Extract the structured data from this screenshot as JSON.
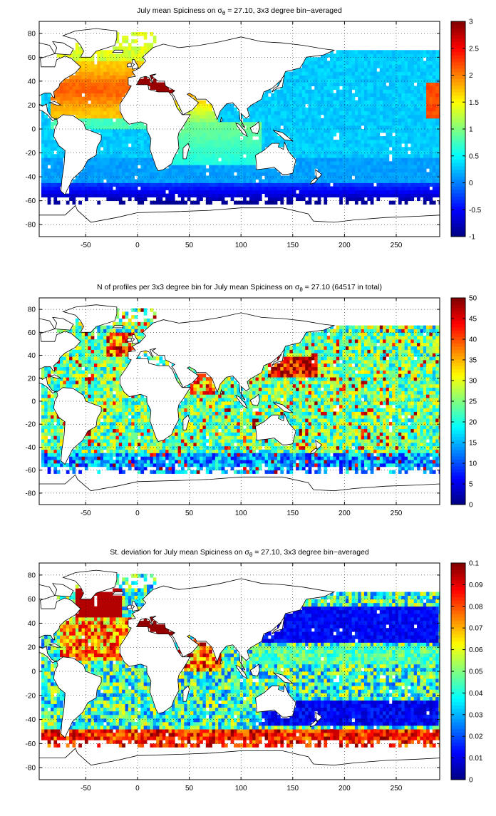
{
  "chart_data": [
    {
      "type": "heatmap",
      "title_pre": "July mean Spiciness on ",
      "title_sym": "σ",
      "title_sub": "θ",
      "title_post": " = 27.10, 3x3 degree bin−averaged",
      "xlim": [
        -95,
        292
      ],
      "ylim": [
        -90,
        90
      ],
      "xticks": [
        -50,
        0,
        50,
        100,
        150,
        200,
        250
      ],
      "yticks": [
        -80,
        -60,
        -40,
        -20,
        0,
        20,
        40,
        60,
        80
      ],
      "grid": true,
      "colormap": "jet",
      "clim": [
        -1,
        3
      ],
      "cticks": [
        -1,
        -0.5,
        0,
        0.5,
        1,
        1.5,
        2,
        2.5,
        3
      ],
      "field": "spiciness"
    },
    {
      "type": "heatmap",
      "title_pre": "N of profiles per 3x3 degree bin for July mean Spiciness on ",
      "title_sym": "σ",
      "title_sub": "θ",
      "title_post": " = 27.10 (64517 in total)",
      "xlim": [
        -95,
        292
      ],
      "ylim": [
        -90,
        90
      ],
      "xticks": [
        -50,
        0,
        50,
        100,
        150,
        200,
        250
      ],
      "yticks": [
        -80,
        -60,
        -40,
        -20,
        0,
        20,
        40,
        60,
        80
      ],
      "grid": true,
      "colormap": "jet",
      "clim": [
        0,
        50
      ],
      "cticks": [
        0,
        5,
        10,
        15,
        20,
        25,
        30,
        35,
        40,
        45,
        50
      ],
      "field": "count"
    },
    {
      "type": "heatmap",
      "title_pre": "St. deviation for July mean Spiciness on ",
      "title_sym": "σ",
      "title_sub": "θ",
      "title_post": " = 27.10, 3x3 degree bin−averaged",
      "xlim": [
        -95,
        292
      ],
      "ylim": [
        -90,
        90
      ],
      "xticks": [
        -50,
        0,
        50,
        100,
        150,
        200,
        250
      ],
      "yticks": [
        -80,
        -60,
        -40,
        -20,
        0,
        20,
        40,
        60,
        80
      ],
      "grid": true,
      "colormap": "jet",
      "clim": [
        0,
        0.1
      ],
      "cticks": [
        0,
        0.01,
        0.02,
        0.03,
        0.04,
        0.05,
        0.06,
        0.07,
        0.08,
        0.09,
        0.1
      ],
      "field": "stdev"
    }
  ]
}
